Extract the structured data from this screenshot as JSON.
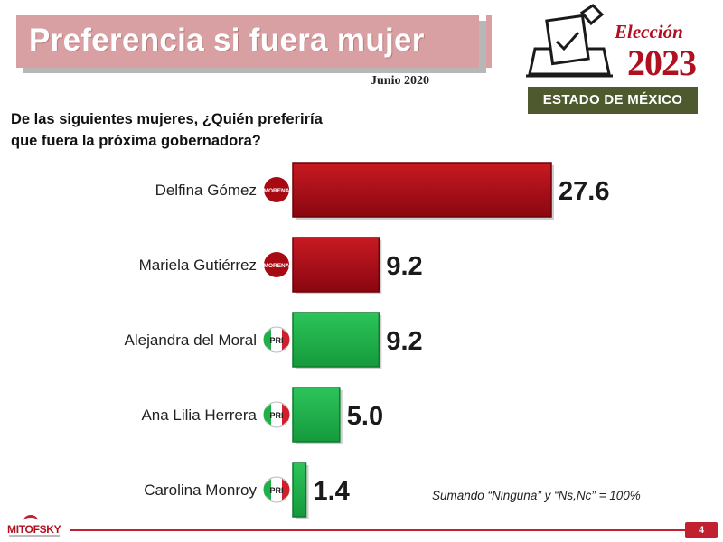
{
  "header": {
    "title": "Preferencia si fuera mujer",
    "date": "Junio 2020"
  },
  "logo": {
    "label": "Elección",
    "year": "2023",
    "state": "ESTADO DE MÉXICO",
    "icon": "ballot-box-icon"
  },
  "question": {
    "line1": "De las siguientes mujeres, ¿Quién preferiría",
    "line2": "que fuera la próxima gobernadora?"
  },
  "colors": {
    "morena": "#a80a14",
    "pri": "#1fb04a",
    "accent": "#c02030"
  },
  "chart_data": {
    "type": "bar",
    "orientation": "horizontal",
    "categories": [
      "Delfina Gómez",
      "Mariela Gutiérrez",
      "Alejandra del Moral",
      "Ana Lilia Herrera",
      "Carolina Monroy"
    ],
    "values": [
      27.6,
      9.2,
      9.2,
      5.0,
      1.4
    ],
    "value_labels": [
      "27.6",
      "9.2",
      "9.2",
      "5.0",
      "1.4"
    ],
    "parties": [
      "MORENA",
      "MORENA",
      "PRI",
      "PRI",
      "PRI"
    ],
    "bar_colors": [
      "#a80a14",
      "#a80a14",
      "#1fb04a",
      "#1fb04a",
      "#1fb04a"
    ],
    "xlim": [
      0,
      30
    ],
    "grid": false,
    "legend": "none"
  },
  "note": "Sumando “Ninguna” y “Ns,Nc”  = 100%",
  "footer": {
    "brand": "MITOFSKY",
    "page": "4"
  }
}
